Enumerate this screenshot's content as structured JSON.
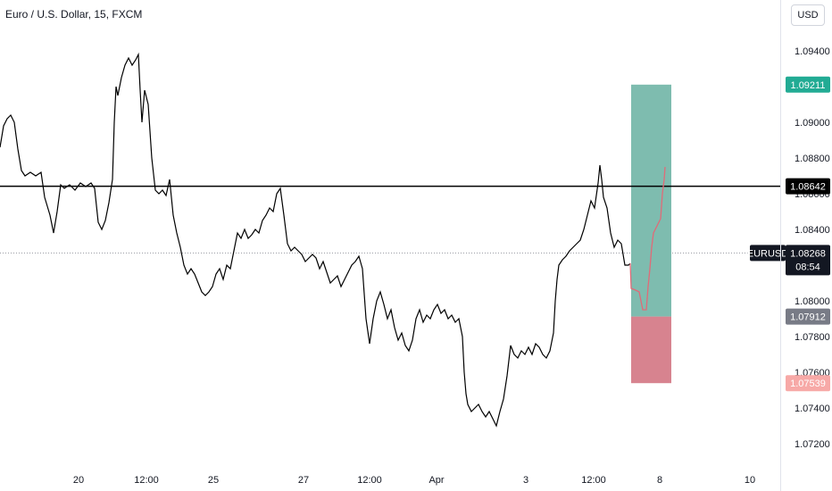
{
  "header": {
    "title": "Euro / U.S. Dollar, 15, FXCM",
    "currency_button": "USD"
  },
  "colors": {
    "price_line": "#000000",
    "target_zone": "#7ebcaf",
    "stop_zone": "#d7838f",
    "projection": "#e06b78",
    "target_label": "#22ab94",
    "stop_label": "#f7a9a7",
    "entry_label": "#787b86",
    "current_label": "#131722"
  },
  "chart_data": {
    "type": "line",
    "title": "Euro / U.S. Dollar, 15, FXCM",
    "ylim": [
      1.0705,
      1.096
    ],
    "y_ticks": [
      "1.09400",
      "1.09000",
      "1.08800",
      "1.08600",
      "1.08400",
      "1.08000",
      "1.07800",
      "1.07600",
      "1.07400",
      "1.07200"
    ],
    "x_ticks": [
      "20",
      "12:00",
      "25",
      "27",
      "12:00",
      "Apr",
      "3",
      "12:00",
      "8",
      "10"
    ],
    "price_series": [
      [
        0,
        1.0886
      ],
      [
        4,
        1.0898
      ],
      [
        8,
        1.0902
      ],
      [
        12,
        1.0904
      ],
      [
        16,
        1.09
      ],
      [
        20,
        1.0885
      ],
      [
        24,
        1.0873
      ],
      [
        28,
        1.087
      ],
      [
        34,
        1.0872
      ],
      [
        40,
        1.087
      ],
      [
        46,
        1.0872
      ],
      [
        50,
        1.0858
      ],
      [
        56,
        1.0848
      ],
      [
        60,
        1.0838
      ],
      [
        64,
        1.085
      ],
      [
        68,
        1.0865
      ],
      [
        72,
        1.0863
      ],
      [
        78,
        1.0865
      ],
      [
        84,
        1.0862
      ],
      [
        90,
        1.0866
      ],
      [
        96,
        1.0864
      ],
      [
        102,
        1.0866
      ],
      [
        106,
        1.0863
      ],
      [
        110,
        1.0844
      ],
      [
        114,
        1.084
      ],
      [
        118,
        1.0845
      ],
      [
        122,
        1.0855
      ],
      [
        126,
        1.0868
      ],
      [
        128,
        1.09
      ],
      [
        130,
        1.092
      ],
      [
        132,
        1.0915
      ],
      [
        136,
        1.0925
      ],
      [
        140,
        1.0932
      ],
      [
        144,
        1.0936
      ],
      [
        148,
        1.0932
      ],
      [
        152,
        1.0935
      ],
      [
        155,
        1.0938
      ],
      [
        157,
        1.0918
      ],
      [
        159,
        1.09
      ],
      [
        162,
        1.0918
      ],
      [
        166,
        1.091
      ],
      [
        170,
        1.088
      ],
      [
        174,
        1.0862
      ],
      [
        178,
        1.086
      ],
      [
        182,
        1.0862
      ],
      [
        186,
        1.0859
      ],
      [
        190,
        1.0868
      ],
      [
        194,
        1.0848
      ],
      [
        198,
        1.0838
      ],
      [
        202,
        1.083
      ],
      [
        206,
        1.082
      ],
      [
        210,
        1.0815
      ],
      [
        214,
        1.0818
      ],
      [
        218,
        1.0815
      ],
      [
        222,
        1.081
      ],
      [
        226,
        1.0805
      ],
      [
        230,
        1.0803
      ],
      [
        234,
        1.0805
      ],
      [
        238,
        1.0808
      ],
      [
        242,
        1.0815
      ],
      [
        246,
        1.0818
      ],
      [
        250,
        1.0812
      ],
      [
        254,
        1.082
      ],
      [
        258,
        1.0818
      ],
      [
        262,
        1.0828
      ],
      [
        266,
        1.0838
      ],
      [
        270,
        1.0835
      ],
      [
        274,
        1.084
      ],
      [
        278,
        1.0835
      ],
      [
        282,
        1.0837
      ],
      [
        286,
        1.084
      ],
      [
        290,
        1.0838
      ],
      [
        294,
        1.0845
      ],
      [
        298,
        1.0848
      ],
      [
        302,
        1.0852
      ],
      [
        306,
        1.085
      ],
      [
        310,
        1.086
      ],
      [
        314,
        1.0863
      ],
      [
        318,
        1.0848
      ],
      [
        322,
        1.0832
      ],
      [
        326,
        1.0828
      ],
      [
        330,
        1.083
      ],
      [
        334,
        1.0828
      ],
      [
        338,
        1.0826
      ],
      [
        342,
        1.0822
      ],
      [
        346,
        1.0824
      ],
      [
        350,
        1.0826
      ],
      [
        354,
        1.0824
      ],
      [
        358,
        1.0818
      ],
      [
        362,
        1.0822
      ],
      [
        366,
        1.0816
      ],
      [
        370,
        1.081
      ],
      [
        374,
        1.0812
      ],
      [
        378,
        1.0814
      ],
      [
        382,
        1.0808
      ],
      [
        386,
        1.0812
      ],
      [
        390,
        1.0816
      ],
      [
        394,
        1.082
      ],
      [
        398,
        1.0822
      ],
      [
        402,
        1.0825
      ],
      [
        406,
        1.0818
      ],
      [
        410,
        1.079
      ],
      [
        414,
        1.0776
      ],
      [
        418,
        1.079
      ],
      [
        422,
        1.08
      ],
      [
        426,
        1.0805
      ],
      [
        430,
        1.0798
      ],
      [
        434,
        1.079
      ],
      [
        438,
        1.0795
      ],
      [
        442,
        1.0785
      ],
      [
        446,
        1.0778
      ],
      [
        450,
        1.0782
      ],
      [
        454,
        1.0775
      ],
      [
        458,
        1.0772
      ],
      [
        462,
        1.0778
      ],
      [
        466,
        1.079
      ],
      [
        470,
        1.0795
      ],
      [
        474,
        1.0788
      ],
      [
        478,
        1.0792
      ],
      [
        482,
        1.079
      ],
      [
        486,
        1.0795
      ],
      [
        490,
        1.0798
      ],
      [
        494,
        1.0793
      ],
      [
        498,
        1.0795
      ],
      [
        502,
        1.079
      ],
      [
        506,
        1.0792
      ],
      [
        510,
        1.0788
      ],
      [
        514,
        1.079
      ],
      [
        518,
        1.078
      ],
      [
        520,
        1.076
      ],
      [
        522,
        1.0748
      ],
      [
        524,
        1.0742
      ],
      [
        528,
        1.0738
      ],
      [
        532,
        1.074
      ],
      [
        536,
        1.0742
      ],
      [
        540,
        1.0738
      ],
      [
        544,
        1.0735
      ],
      [
        548,
        1.0738
      ],
      [
        552,
        1.0734
      ],
      [
        556,
        1.073
      ],
      [
        560,
        1.0738
      ],
      [
        564,
        1.0745
      ],
      [
        568,
        1.0758
      ],
      [
        572,
        1.0775
      ],
      [
        576,
        1.077
      ],
      [
        580,
        1.0768
      ],
      [
        584,
        1.0772
      ],
      [
        588,
        1.077
      ],
      [
        592,
        1.0774
      ],
      [
        596,
        1.077
      ],
      [
        600,
        1.0776
      ],
      [
        604,
        1.0774
      ],
      [
        608,
        1.077
      ],
      [
        612,
        1.0768
      ],
      [
        616,
        1.0772
      ],
      [
        620,
        1.0782
      ],
      [
        622,
        1.08
      ],
      [
        624,
        1.0812
      ],
      [
        626,
        1.082
      ],
      [
        630,
        1.0823
      ],
      [
        634,
        1.0825
      ],
      [
        638,
        1.0828
      ],
      [
        642,
        1.083
      ],
      [
        646,
        1.0832
      ],
      [
        650,
        1.0834
      ],
      [
        654,
        1.084
      ],
      [
        658,
        1.0848
      ],
      [
        662,
        1.0856
      ],
      [
        666,
        1.0852
      ],
      [
        670,
        1.0866
      ],
      [
        672,
        1.0876
      ],
      [
        674,
        1.0868
      ],
      [
        676,
        1.0858
      ],
      [
        680,
        1.0852
      ],
      [
        684,
        1.0838
      ],
      [
        688,
        1.083
      ],
      [
        692,
        1.0834
      ],
      [
        696,
        1.0832
      ],
      [
        700,
        1.082
      ],
      [
        704,
        1.082
      ],
      [
        706,
        1.0821
      ]
    ],
    "projection_series": [
      [
        706,
        1.0821
      ],
      [
        707,
        1.0807
      ],
      [
        712,
        1.0806
      ],
      [
        716,
        1.0805
      ],
      [
        720,
        1.0795
      ],
      [
        724,
        1.0795
      ],
      [
        726,
        1.0808
      ],
      [
        728,
        1.0818
      ],
      [
        730,
        1.083
      ],
      [
        732,
        1.0838
      ],
      [
        736,
        1.0842
      ],
      [
        740,
        1.0846
      ],
      [
        742,
        1.086
      ],
      [
        744,
        1.0868
      ],
      [
        745,
        1.0875
      ]
    ],
    "horizontal_line": {
      "value": 1.08642,
      "label": "1.08642"
    },
    "current_price": {
      "value": 1.08268,
      "symbol": "EURUSD",
      "price_label": "1.08268",
      "countdown": "08:54"
    },
    "position": {
      "entry": 1.07912,
      "entry_label": "1.07912",
      "target": 1.09211,
      "target_label": "1.09211",
      "stop": 1.07539,
      "stop_label": "1.07539",
      "x_start": 707,
      "x_end": 752
    },
    "grid": false
  }
}
